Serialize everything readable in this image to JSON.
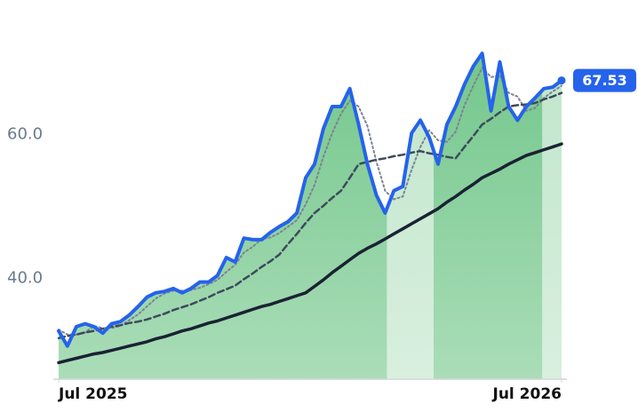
{
  "chart_data": {
    "type": "line",
    "xlim": [
      0,
      57
    ],
    "xticks": [
      {
        "value": 0,
        "label": "Jul 2025"
      },
      {
        "value": 57,
        "label": "Jul 2026"
      }
    ],
    "ylim": [
      26,
      78
    ],
    "yticks": [
      {
        "value": 40,
        "label": "40.0"
      },
      {
        "value": 60,
        "label": "60.0"
      }
    ],
    "area_color": "#7fcf95",
    "bands": [
      {
        "start": 37.2,
        "end": 42.5
      },
      {
        "start": 54.8,
        "end": 57
      }
    ],
    "series": [
      {
        "color": "#2563eb",
        "style": "solid",
        "width": 4,
        "area": true,
        "values": [
          32.7,
          30.6,
          33.3,
          33.7,
          33.3,
          32.4,
          33.7,
          34.0,
          34.9,
          36.1,
          37.4,
          38.0,
          38.2,
          38.6,
          38.0,
          38.6,
          39.5,
          39.5,
          40.4,
          42.9,
          42.3,
          45.6,
          45.4,
          45.4,
          46.4,
          47.2,
          47.9,
          49.1,
          54.0,
          55.9,
          60.8,
          63.9,
          63.9,
          66.4,
          61.4,
          55.9,
          51.6,
          49.1,
          52.2,
          52.8,
          60.2,
          62.0,
          59.6,
          55.9,
          61.4,
          63.9,
          67.0,
          69.5,
          71.3,
          63.3,
          70.1,
          63.9,
          62.0,
          63.9,
          65.1,
          66.4,
          66.6,
          67.53
        ]
      },
      {
        "color": "#7b8494",
        "style": "dotted",
        "width": 2,
        "values": [
          32.9,
          32.2,
          32.2,
          32.5,
          33.4,
          33.1,
          33.1,
          33.4,
          34.2,
          35.0,
          36.1,
          37.2,
          37.9,
          38.3,
          38.3,
          38.4,
          38.7,
          39.2,
          39.8,
          40.9,
          41.9,
          43.6,
          44.4,
          45.5,
          45.7,
          46.3,
          47.2,
          48.1,
          50.3,
          53.0,
          56.9,
          60.2,
          62.9,
          64.7,
          63.9,
          61.2,
          56.3,
          52.2,
          51.0,
          51.4,
          55.1,
          58.3,
          60.6,
          59.2,
          59.0,
          60.4,
          64.1,
          66.8,
          69.3,
          68.0,
          68.2,
          65.8,
          65.3,
          63.3,
          63.7,
          65.1,
          66.0,
          66.8
        ]
      },
      {
        "color": "#3d4a5c",
        "style": "dashed",
        "width": 2.5,
        "values": [
          31.7,
          32.0,
          32.2,
          32.5,
          32.7,
          33.0,
          33.3,
          33.5,
          33.8,
          34.0,
          34.3,
          34.7,
          35.1,
          35.6,
          36.0,
          36.4,
          36.9,
          37.4,
          38.0,
          38.5,
          39.0,
          39.9,
          40.7,
          41.6,
          42.4,
          43.3,
          44.8,
          46.2,
          47.7,
          49.1,
          50.1,
          51.2,
          52.2,
          54.0,
          55.9,
          56.2,
          56.5,
          56.7,
          57.0,
          57.2,
          57.5,
          57.7,
          57.4,
          57.2,
          56.9,
          56.7,
          58.3,
          59.8,
          61.4,
          62.2,
          63.1,
          63.9,
          64.1,
          64.2,
          64.4,
          64.9,
          65.3,
          65.8
        ]
      },
      {
        "color": "#1a2233",
        "style": "solid",
        "width": 3.5,
        "values": [
          28.3,
          28.6,
          28.9,
          29.2,
          29.5,
          29.7,
          30.0,
          30.3,
          30.6,
          30.9,
          31.2,
          31.6,
          31.9,
          32.3,
          32.7,
          33.0,
          33.4,
          33.8,
          34.1,
          34.5,
          34.9,
          35.3,
          35.7,
          36.1,
          36.4,
          36.8,
          37.2,
          37.6,
          38.0,
          38.9,
          39.8,
          40.8,
          41.7,
          42.6,
          43.5,
          44.2,
          44.8,
          45.5,
          46.2,
          46.9,
          47.6,
          48.3,
          49.0,
          49.7,
          50.6,
          51.4,
          52.3,
          53.1,
          54.0,
          54.6,
          55.2,
          55.9,
          56.5,
          57.1,
          57.5,
          57.9,
          58.3,
          58.7
        ]
      }
    ]
  }
}
